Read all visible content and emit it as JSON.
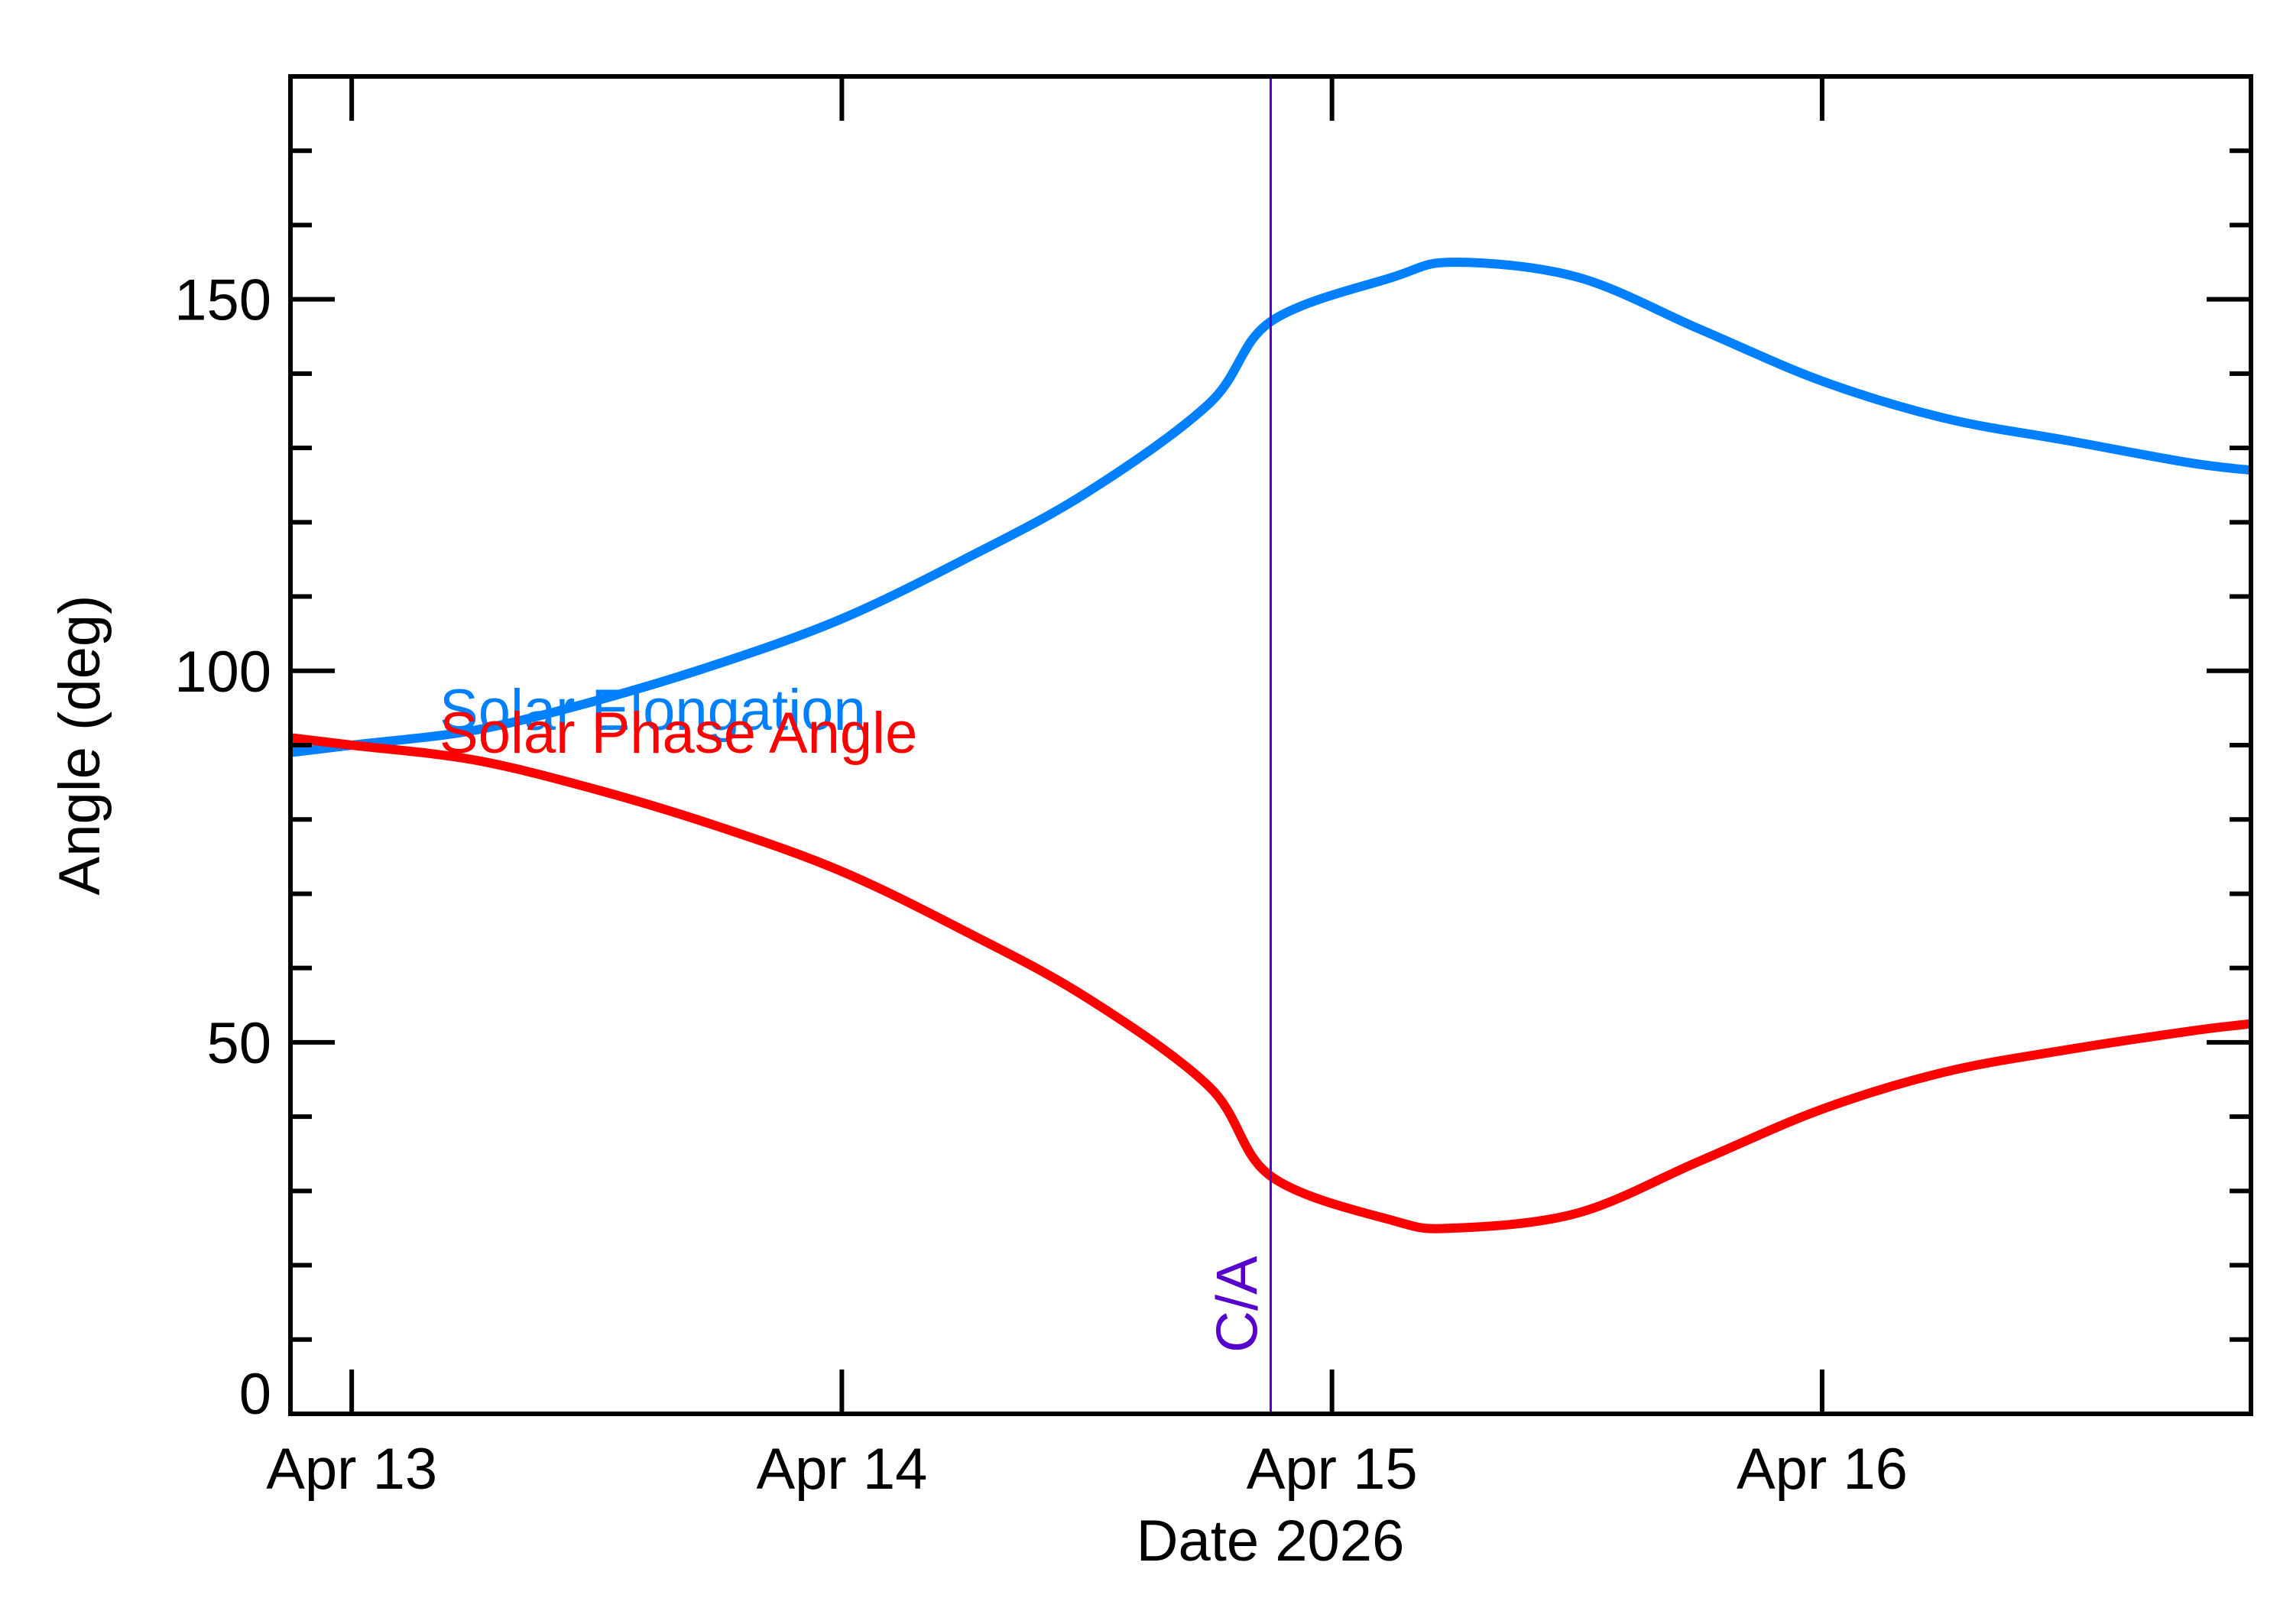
{
  "chart_data": {
    "type": "line",
    "xlabel": "Date 2026",
    "ylabel": "Angle (deg)",
    "x_range": [
      "2026-04-12 21:00",
      "2026-04-16 21:00"
    ],
    "ylim": [
      0,
      180
    ],
    "x_major_ticks": [
      {
        "date": "2026-04-13 00:00",
        "label": "Apr 13"
      },
      {
        "date": "2026-04-14 00:00",
        "label": "Apr 14"
      },
      {
        "date": "2026-04-15 00:00",
        "label": "Apr 15"
      },
      {
        "date": "2026-04-16 00:00",
        "label": "Apr 16"
      }
    ],
    "y_major_ticks": [
      {
        "value": 0,
        "label": "0"
      },
      {
        "value": 50,
        "label": "50"
      },
      {
        "value": 100,
        "label": "100"
      },
      {
        "value": 150,
        "label": "150"
      }
    ],
    "y_minor_step": 10,
    "grid": false,
    "closest_approach": {
      "date": "2026-04-14 21:00",
      "label": "C/A",
      "color": "#5500cc"
    },
    "series": [
      {
        "name": "Solar Elongation",
        "color": "#0080ff",
        "points": [
          [
            "2026-04-12 21:00",
            89
          ],
          [
            "2026-04-13 00:00",
            90
          ],
          [
            "2026-04-13 06:00",
            92
          ],
          [
            "2026-04-13 12:00",
            96
          ],
          [
            "2026-04-13 18:00",
            101
          ],
          [
            "2026-04-14 00:00",
            107
          ],
          [
            "2026-04-14 06:00",
            115
          ],
          [
            "2026-04-14 12:00",
            124
          ],
          [
            "2026-04-14 18:00",
            136
          ],
          [
            "2026-04-14 21:00",
            147
          ],
          [
            "2026-04-15 03:00",
            153
          ],
          [
            "2026-04-15 06:00",
            155
          ],
          [
            "2026-04-15 12:00",
            153
          ],
          [
            "2026-04-15 18:00",
            146
          ],
          [
            "2026-04-16 00:00",
            139
          ],
          [
            "2026-04-16 06:00",
            134
          ],
          [
            "2026-04-16 12:00",
            131
          ],
          [
            "2026-04-16 18:00",
            128
          ],
          [
            "2026-04-16 21:00",
            127
          ]
        ]
      },
      {
        "name": "Solar Phase Angle",
        "color": "#ff0000",
        "points": [
          [
            "2026-04-12 21:00",
            91
          ],
          [
            "2026-04-13 00:00",
            90
          ],
          [
            "2026-04-13 06:00",
            88
          ],
          [
            "2026-04-13 12:00",
            84
          ],
          [
            "2026-04-13 18:00",
            79
          ],
          [
            "2026-04-14 00:00",
            73
          ],
          [
            "2026-04-14 06:00",
            65
          ],
          [
            "2026-04-14 12:00",
            56
          ],
          [
            "2026-04-14 18:00",
            44
          ],
          [
            "2026-04-14 21:00",
            32
          ],
          [
            "2026-04-15 03:00",
            26
          ],
          [
            "2026-04-15 06:00",
            25
          ],
          [
            "2026-04-15 12:00",
            27
          ],
          [
            "2026-04-15 18:00",
            34
          ],
          [
            "2026-04-16 00:00",
            41
          ],
          [
            "2026-04-16 06:00",
            46
          ],
          [
            "2026-04-16 12:00",
            49
          ],
          [
            "2026-04-16 18:00",
            51.5
          ],
          [
            "2026-04-16 21:00",
            52.5
          ]
        ]
      }
    ]
  }
}
